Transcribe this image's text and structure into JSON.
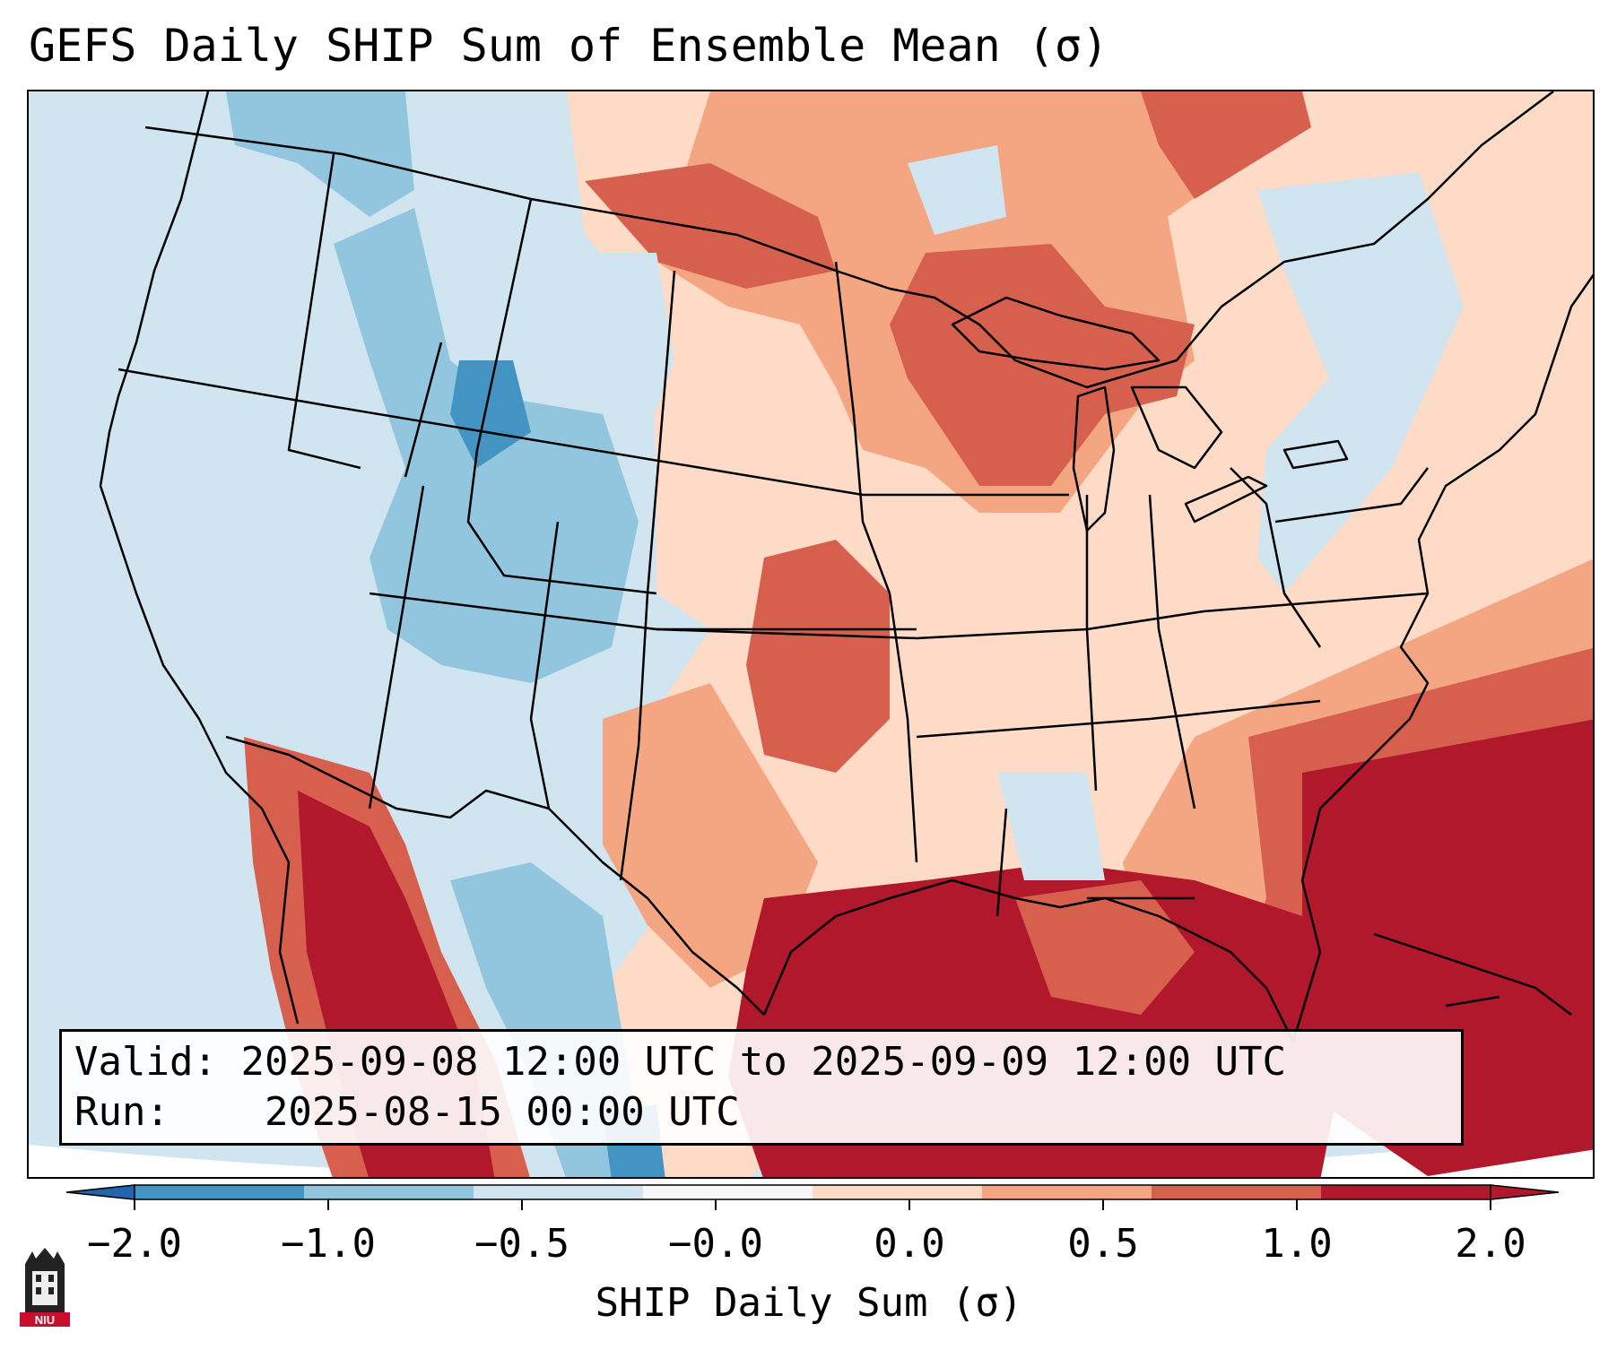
{
  "title": "GEFS Daily SHIP Sum of Ensemble Mean (σ)",
  "info": {
    "valid_label": "Valid:",
    "valid_value": "2025-09-08 12:00 UTC to 2025-09-09 12:00 UTC",
    "run_label": "Run:",
    "run_value": "2025-08-15 00:00 UTC"
  },
  "colorbar": {
    "label": "SHIP Daily Sum (σ)",
    "ticks": [
      "−2.0",
      "−1.0",
      "−0.5",
      "−0.0",
      "0.0",
      "0.5",
      "1.0",
      "2.0"
    ],
    "colors": [
      "#4393c3",
      "#92c5de",
      "#d1e5f0",
      "#f7f7f7",
      "#fddbc7",
      "#f4a582",
      "#d6604d",
      "#b2182b"
    ],
    "under_color": "#2166ac",
    "over_color": "#b2182b"
  },
  "logo": {
    "icon": "niu-logo-icon",
    "text": "NIU"
  }
}
